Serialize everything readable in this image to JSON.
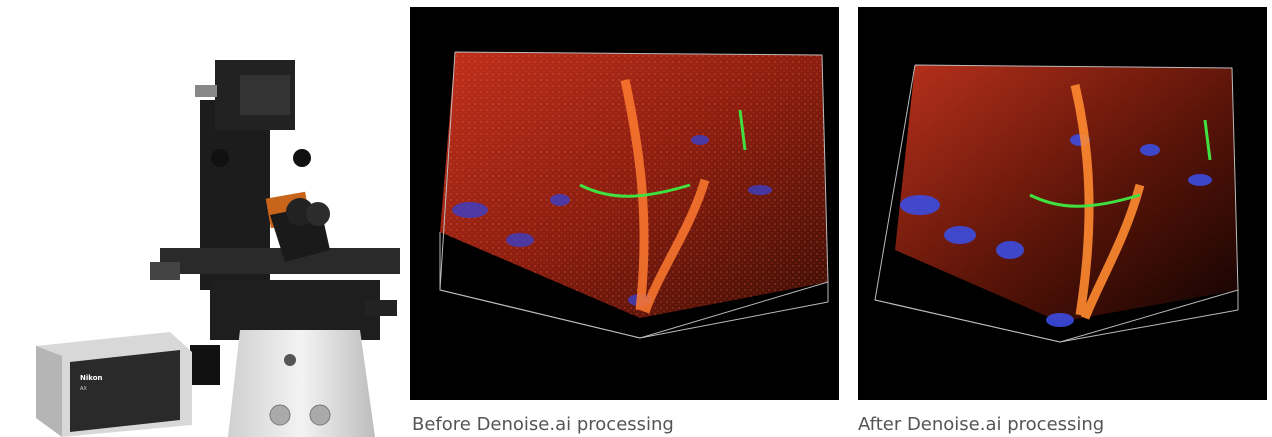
{
  "instrument": {
    "brand": "Nikon",
    "model": "AX"
  },
  "figures": [
    {
      "caption": "Before Denoise.ai processing"
    },
    {
      "caption": "After Denoise.ai processing"
    }
  ]
}
